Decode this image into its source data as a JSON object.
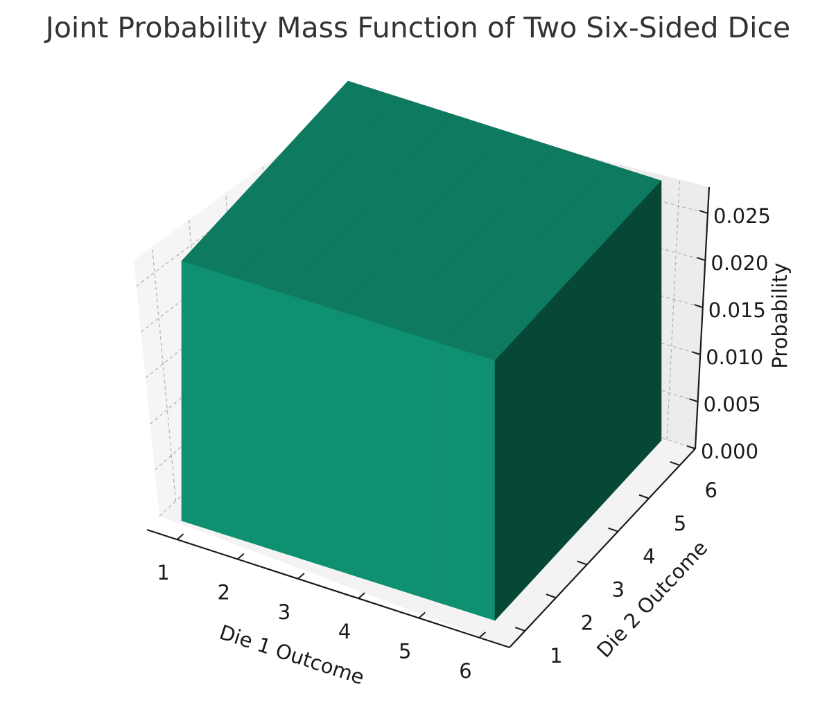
{
  "chart_data": {
    "type": "bar3d",
    "title": "Joint Probability Mass Function of Two Six-Sided Dice",
    "xlabel": "Die 1 Outcome",
    "ylabel": "Die 2 Outcome",
    "zlabel": "Probability",
    "x_categories": [
      "1",
      "2",
      "3",
      "4",
      "5",
      "6"
    ],
    "y_categories": [
      "1",
      "2",
      "3",
      "4",
      "5",
      "6"
    ],
    "z_ticks": [
      "0.000",
      "0.005",
      "0.010",
      "0.015",
      "0.020",
      "0.025"
    ],
    "zlim": [
      0,
      0.0278
    ],
    "values": [
      [
        0.0278,
        0.0278,
        0.0278,
        0.0278,
        0.0278,
        0.0278
      ],
      [
        0.0278,
        0.0278,
        0.0278,
        0.0278,
        0.0278,
        0.0278
      ],
      [
        0.0278,
        0.0278,
        0.0278,
        0.0278,
        0.0278,
        0.0278
      ],
      [
        0.0278,
        0.0278,
        0.0278,
        0.0278,
        0.0278,
        0.0278
      ],
      [
        0.0278,
        0.0278,
        0.0278,
        0.0278,
        0.0278,
        0.0278
      ],
      [
        0.0278,
        0.0278,
        0.0278,
        0.0278,
        0.0278,
        0.0278
      ]
    ],
    "grid": true,
    "colors": {
      "top": "#0e7a5f",
      "front": "#0f9070",
      "side": "#074736",
      "pane": "#f2f2f2"
    }
  }
}
